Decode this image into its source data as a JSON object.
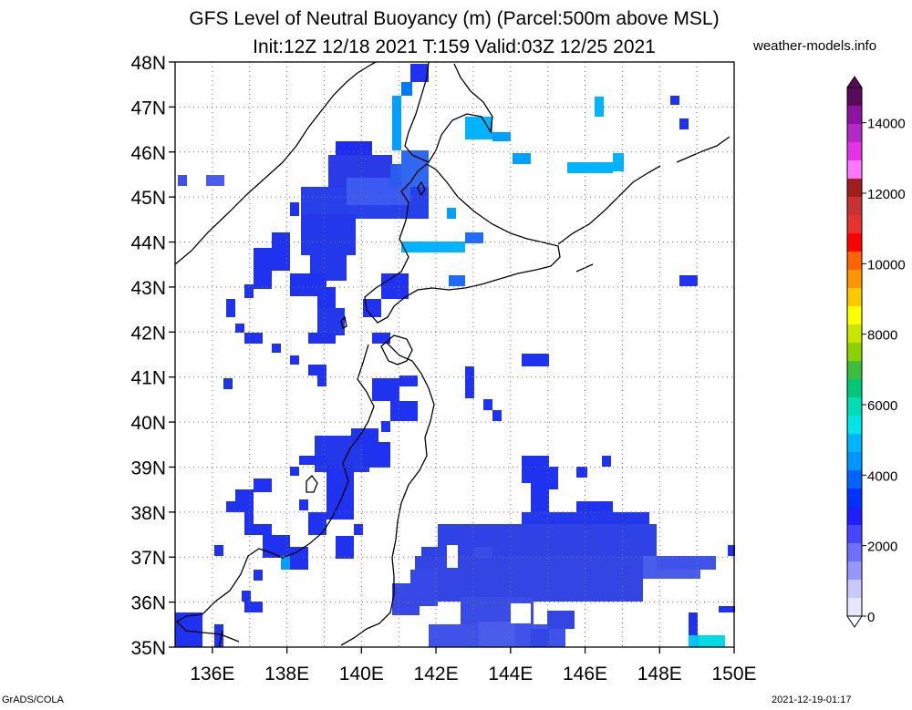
{
  "header": {
    "title_line1": "GFS Level of Neutral Buoyancy (m) (Parcel:500m above MSL)",
    "title_line2": "Init:12Z 12/18 2021 T:159 Valid:03Z 12/25 2021",
    "site": "weather-models.info"
  },
  "footer": {
    "software": "GrADS/COLA",
    "timestamp": "2021-12-19-01:17"
  },
  "map": {
    "lat_labels": [
      "48N",
      "47N",
      "46N",
      "45N",
      "44N",
      "43N",
      "42N",
      "41N",
      "40N",
      "39N",
      "38N",
      "37N",
      "36N",
      "35N"
    ],
    "lon_labels": [
      "136E",
      "138E",
      "140E",
      "142E",
      "144E",
      "146E",
      "148E",
      "150E"
    ],
    "lat_range": [
      35,
      48
    ],
    "lon_range": [
      135,
      150
    ],
    "grid": true
  },
  "colorbar": {
    "labels": [
      "14000",
      "12000",
      "10000",
      "8000",
      "6000",
      "4000",
      "2000",
      "0"
    ],
    "colors": [
      "#5a0a5a",
      "#8c14a0",
      "#b428c8",
      "#e632e6",
      "#ff78ff",
      "#a01e1e",
      "#c83232",
      "#e63232",
      "#ff0000",
      "#ff6400",
      "#ff9600",
      "#ffc800",
      "#ffff00",
      "#c8e600",
      "#8cd200",
      "#3cbe3c",
      "#00c878",
      "#00dcb4",
      "#00e6e6",
      "#00b4ff",
      "#0096ff",
      "#0064ff",
      "#0032ff",
      "#1e1eff",
      "#4646ff",
      "#6e6eff",
      "#9696ff",
      "#c8c8ff",
      "#e6e6ff"
    ]
  }
}
